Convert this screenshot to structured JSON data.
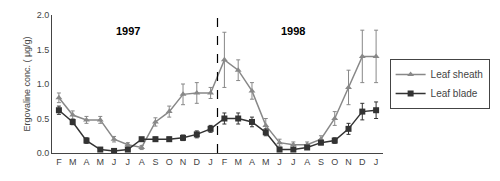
{
  "chart_data": {
    "type": "line",
    "categories": [
      "F",
      "M",
      "A",
      "M",
      "J",
      "J",
      "A",
      "S",
      "O",
      "N",
      "D",
      "J",
      "F",
      "M",
      "A",
      "M",
      "J",
      "J",
      "A",
      "S",
      "O",
      "N",
      "D",
      "J"
    ],
    "series": [
      {
        "name": "Leaf sheath",
        "color": "#888888",
        "marker": "triangle-up",
        "line_style": "solid",
        "values": [
          0.8,
          0.55,
          0.48,
          0.48,
          0.2,
          0.12,
          0.08,
          0.45,
          0.6,
          0.85,
          0.87,
          0.87,
          1.35,
          1.2,
          0.9,
          0.4,
          0.15,
          0.12,
          0.12,
          0.2,
          0.5,
          0.95,
          1.4,
          1.4
        ],
        "errors": [
          0.07,
          0.06,
          0.05,
          0.05,
          0.04,
          0.03,
          0.03,
          0.06,
          0.08,
          0.15,
          0.15,
          0.08,
          0.4,
          0.15,
          0.12,
          0.1,
          0.05,
          0.04,
          0.04,
          0.05,
          0.1,
          0.25,
          0.38,
          0.38
        ]
      },
      {
        "name": "Leaf blade",
        "color": "#333333",
        "marker": "square",
        "line_style": "solid",
        "values": [
          0.62,
          0.45,
          0.18,
          0.05,
          0.03,
          0.05,
          0.2,
          0.2,
          0.2,
          0.22,
          0.27,
          0.35,
          0.5,
          0.5,
          0.45,
          0.3,
          0.05,
          0.05,
          0.08,
          0.15,
          0.18,
          0.35,
          0.6,
          0.62
        ],
        "errors": [
          0.06,
          0.04,
          0.04,
          0.02,
          0.01,
          0.01,
          0.02,
          0.03,
          0.03,
          0.04,
          0.05,
          0.05,
          0.08,
          0.08,
          0.07,
          0.05,
          0.02,
          0.01,
          0.02,
          0.03,
          0.04,
          0.08,
          0.12,
          0.12
        ]
      }
    ],
    "ylabel": "Ergovaline conc. ( μg/g)",
    "ylim": [
      0,
      2.0
    ],
    "yticks": [
      {
        "value": 0,
        "label": "0.0"
      },
      0.5,
      {
        "value": 1,
        "label": "1.0"
      },
      1.5,
      {
        "value": 2,
        "label": "2.0"
      }
    ],
    "annotations": [
      {
        "text": "1997",
        "x": 5,
        "y": 1.88
      },
      {
        "text": "1998",
        "x": 17,
        "y": 1.88
      }
    ],
    "vlines": [
      {
        "x": 11.5,
        "line_style": "dashed",
        "color": "black"
      }
    ],
    "grid": false,
    "legend": "right"
  }
}
